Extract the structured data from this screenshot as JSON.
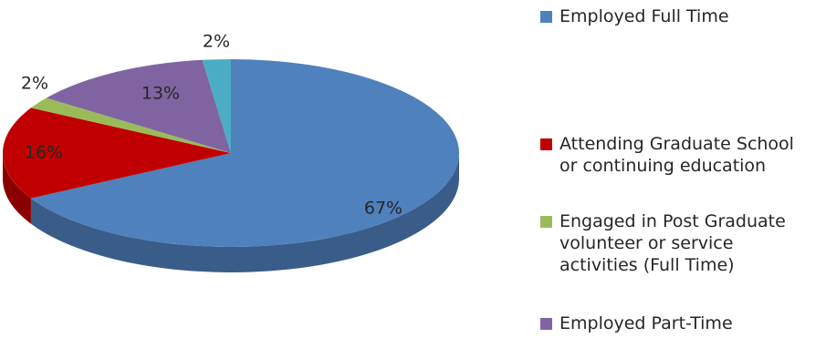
{
  "chart_data": {
    "type": "pie",
    "style": "3d",
    "title": "",
    "slices": [
      {
        "label": "Employed Full Time",
        "value": 67,
        "display": "67%",
        "color": "#4F81BD"
      },
      {
        "label": "Attending Graduate School\nor continuing education",
        "value": 16,
        "display": "16%",
        "color": "#C00000"
      },
      {
        "label": "Engaged in Post Graduate\nvolunteer or service\nactivities (Full Time)",
        "value": 2,
        "display": "2%",
        "color": "#9BBB59"
      },
      {
        "label": "Employed Part-Time",
        "value": 13,
        "display": "13%",
        "color": "#8064A2"
      },
      {
        "label": "",
        "value": 2,
        "display": "2%",
        "color": "#4BACC6"
      }
    ],
    "legend_position": "right"
  }
}
